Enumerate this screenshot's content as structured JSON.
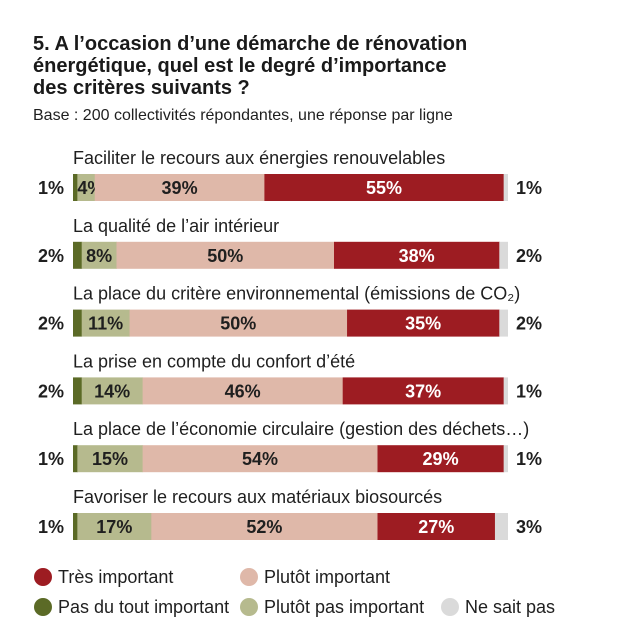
{
  "chart_data": {
    "type": "bar",
    "orientation": "horizontal",
    "stacked": true,
    "title": "5. A l’occasion d’une démarche de rénovation énergétique, quel est le degré d’importance des critères suivants ?",
    "subtitle": "Base : 200 collectivités répondantes, une réponse par ligne",
    "value_suffix": "%",
    "xlim": [
      0,
      100
    ],
    "grid": false,
    "legend": "bottom",
    "categories": [
      "Faciliter le recours aux énergies renouvelables",
      "La qualité de l’air intérieur",
      "La place du critère environnemental (émissions de CO₂)",
      "La prise en compte du confort d’été",
      "La place de l’économie circulaire (gestion des déchets…)",
      "Favoriser le recours aux matériaux biosourcés"
    ],
    "series": [
      {
        "name": "Pas du tout important",
        "color": "#5b6a26",
        "label_color": "#1f1f1f",
        "values": [
          1,
          2,
          2,
          2,
          1,
          1
        ]
      },
      {
        "name": "Plutôt pas important",
        "color": "#b6ba8e",
        "label_color": "#1f1f1f",
        "values": [
          4,
          8,
          11,
          14,
          15,
          17
        ]
      },
      {
        "name": "Plutôt important",
        "color": "#dfb8a9",
        "label_color": "#1f1f1f",
        "values": [
          39,
          50,
          50,
          46,
          54,
          52
        ]
      },
      {
        "name": "Très important",
        "color": "#9d1c22",
        "label_color": "#ffffff",
        "values": [
          55,
          38,
          35,
          37,
          29,
          27
        ]
      },
      {
        "name": "Ne sait pas",
        "color": "#dadada",
        "label_color": "#1f1f1f",
        "values": [
          1,
          2,
          2,
          1,
          1,
          3
        ]
      }
    ]
  }
}
